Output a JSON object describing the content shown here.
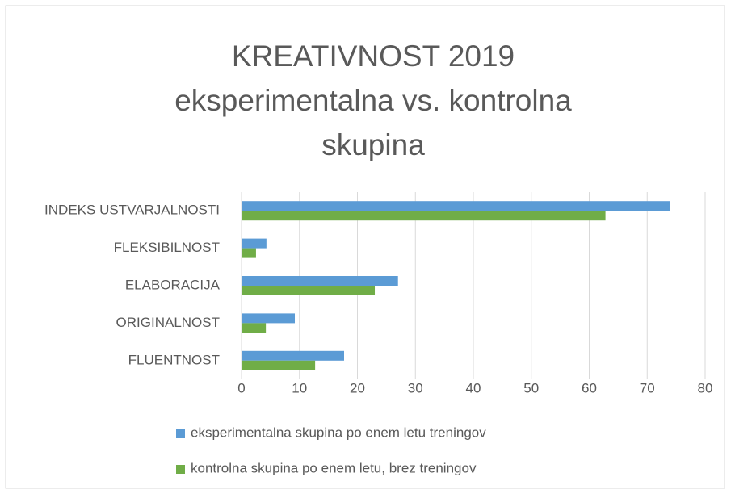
{
  "chart_data": {
    "type": "hbar",
    "title": [
      "KREATIVNOST 2019",
      "eksperimentalna vs. kontrolna",
      "skupina"
    ],
    "categories": [
      "INDEKS USTVARJALNOSTI",
      "FLEKSIBILNOST",
      "ELABORACIJA",
      "ORIGINALNOST",
      "FLUENTNOST"
    ],
    "series": [
      {
        "name": "eksperimentalna skupina po enem letu treningov",
        "color": "#5b9bd5",
        "values": [
          74,
          4.3,
          27,
          9.2,
          17.7
        ]
      },
      {
        "name": "kontrolna skupina po enem letu, brez treningov",
        "color": "#70ad47",
        "values": [
          62.8,
          2.5,
          23,
          4.2,
          12.7
        ]
      }
    ],
    "xlim": [
      0,
      80
    ],
    "xticks": [
      0,
      10,
      20,
      30,
      40,
      50,
      60,
      70,
      80
    ],
    "grid": true,
    "legend": "bottom"
  }
}
